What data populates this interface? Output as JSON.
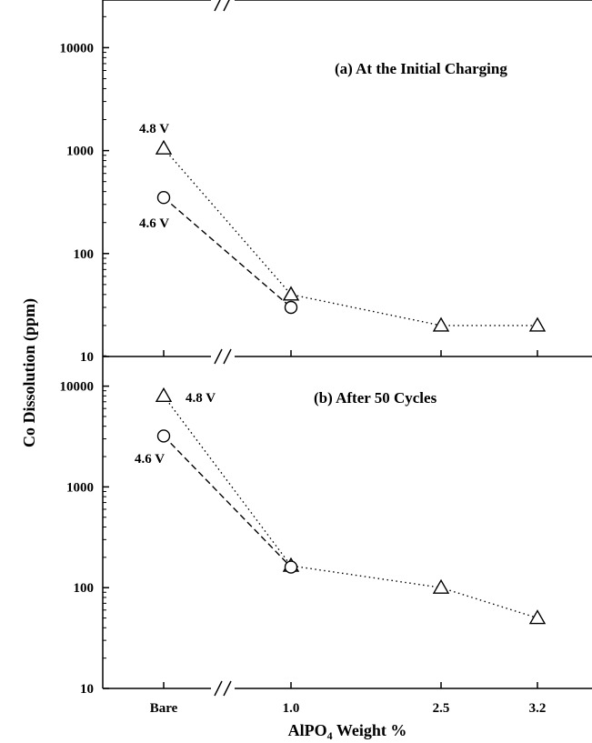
{
  "chart_data": {
    "type": "line",
    "x_categories": [
      "Bare",
      "1.0",
      "2.5",
      "3.2"
    ],
    "xlabel": {
      "main": "AlPO",
      "sub": "4",
      "rest": " Weight %"
    },
    "ylabel": "Co Dissolution (ppm)",
    "y_scale": "log",
    "ylim": [
      10,
      20000
    ],
    "y_ticks": [
      10,
      100,
      1000,
      10000
    ],
    "x_axis_break": "//",
    "panels": [
      {
        "title": "(a) At the Initial Charging",
        "series": [
          {
            "name": "4.8 V",
            "marker": "triangle",
            "line": "dotted",
            "values": [
              1050,
              40,
              20,
              20
            ]
          },
          {
            "name": "4.6 V",
            "marker": "circle",
            "line": "dashed",
            "values": [
              350,
              30,
              null,
              null
            ]
          }
        ]
      },
      {
        "title": "(b) After 50 Cycles",
        "series": [
          {
            "name": "4.8 V",
            "marker": "triangle",
            "line": "dotted",
            "values": [
              8000,
              165,
              100,
              50
            ]
          },
          {
            "name": "4.6 V",
            "marker": "circle",
            "line": "dashed",
            "values": [
              3200,
              160,
              null,
              null
            ]
          }
        ]
      }
    ]
  }
}
